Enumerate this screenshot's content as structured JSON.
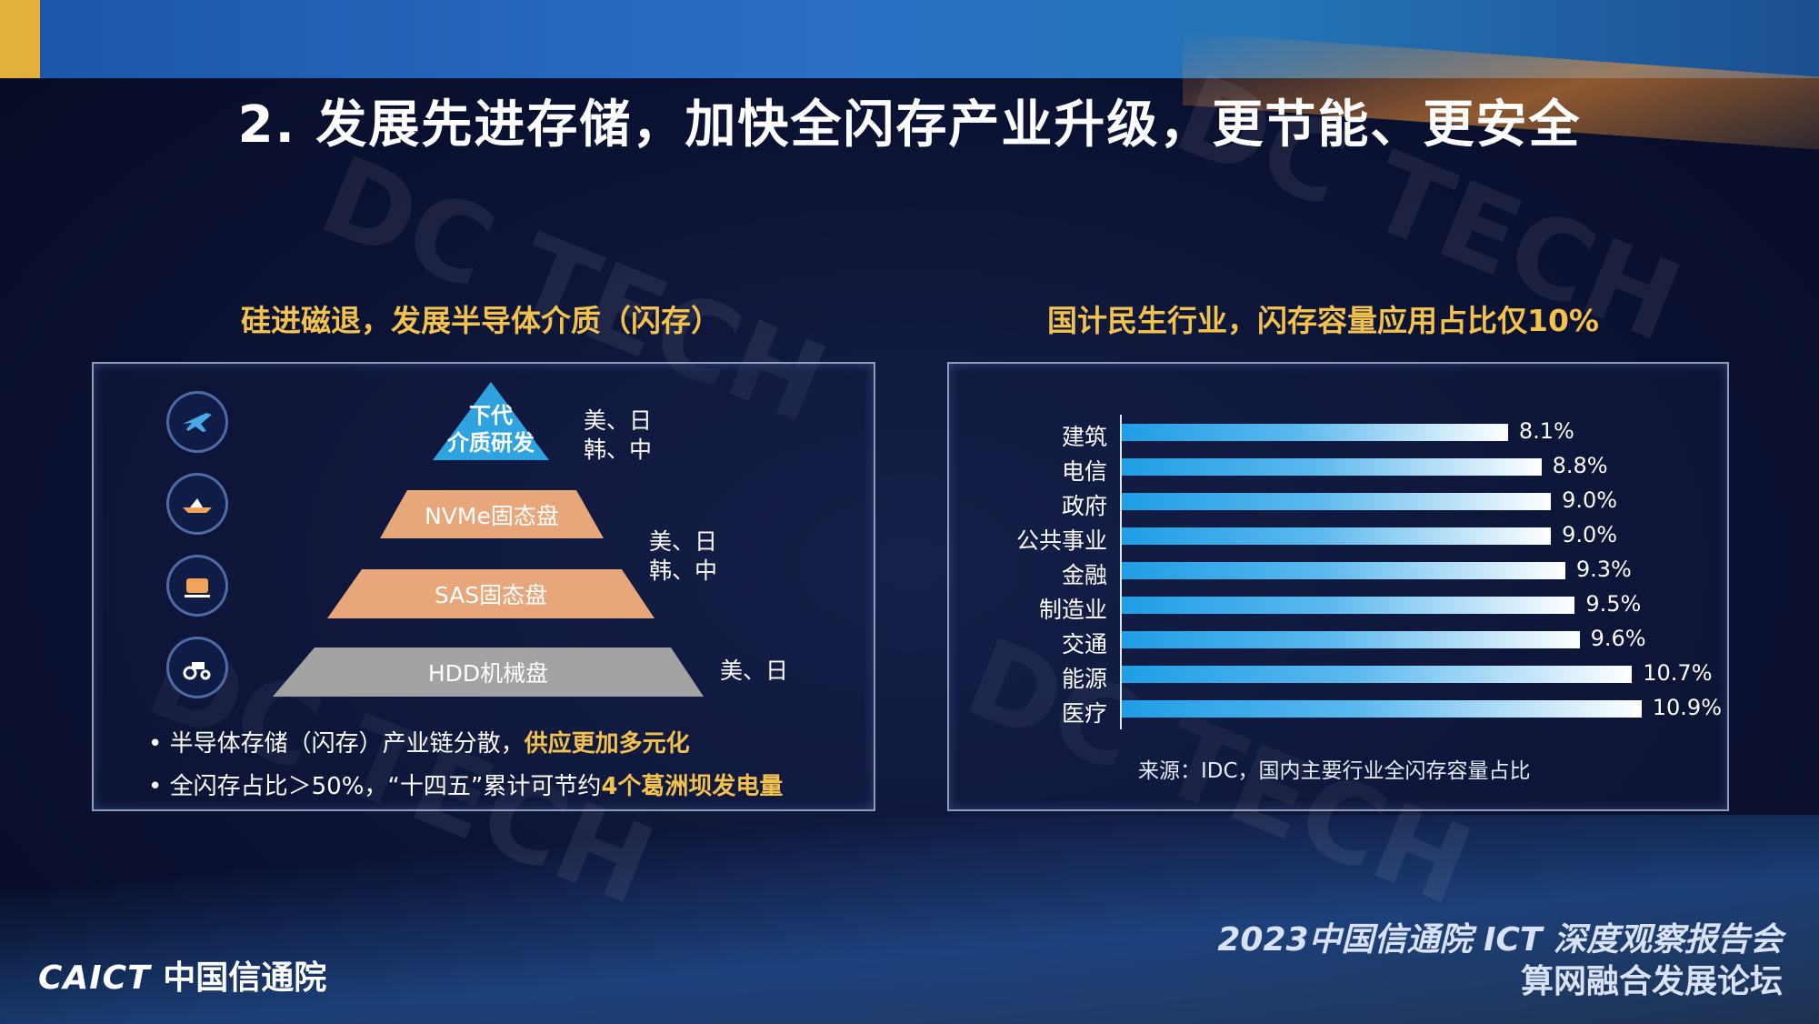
{
  "slide": {
    "title": "2. 发展先进存储，加快全闪存产业升级，更节能、更安全",
    "watermark": "DC TECH"
  },
  "left_panel": {
    "title": "硅进磁退，发展半导体介质（闪存）",
    "icons": [
      "jet-icon",
      "speedboat-icon",
      "train-icon",
      "tractor-icon"
    ],
    "tiers": [
      {
        "label_line1": "下代",
        "label_line2": "介质研发",
        "color": "#2ea3e0",
        "countries_line1": "美、日",
        "countries_line2": "韩、中"
      },
      {
        "label": "NVMe固态盘",
        "color": "#e8a77a"
      },
      {
        "label": "SAS固态盘",
        "color": "#e8a77a",
        "countries_line1": "美、日",
        "countries_line2": "韩、中"
      },
      {
        "label": "HDD机械盘",
        "color": "#a3a3a3",
        "countries": "美、日"
      }
    ],
    "bullets": [
      {
        "text": "半导体存储（闪存）产业链分散，",
        "highlight": "供应更加多元化",
        "suffix": ""
      },
      {
        "text": "全闪存占比＞50%，“十四五”累计可节约",
        "highlight": "4个葛洲坝发电量",
        "suffix": ""
      }
    ]
  },
  "right_panel": {
    "title": "国计民生行业，闪存容量应用占比仅10%",
    "source": "来源：IDC，国内主要行业全闪存容量占比"
  },
  "chart_data": {
    "type": "bar",
    "orientation": "horizontal",
    "categories": [
      "建筑",
      "电信",
      "政府",
      "公共事业",
      "金融",
      "制造业",
      "交通",
      "能源",
      "医疗"
    ],
    "values": [
      8.1,
      8.8,
      9.0,
      9.0,
      9.3,
      9.5,
      9.6,
      10.7,
      10.9
    ],
    "value_labels": [
      "8.1%",
      "8.8%",
      "9.0%",
      "9.0%",
      "9.3%",
      "9.5%",
      "9.6%",
      "10.7%",
      "10.9%"
    ],
    "xlim": [
      0,
      11
    ],
    "title": "",
    "xlabel": "",
    "ylabel": "",
    "grid": false,
    "bar_color_start": "#1f9ee6",
    "bar_color_end": "#ffffff"
  },
  "footer": {
    "event_line1": "2023中国信通院 ICT 深度观察报告会",
    "event_line2": "算网融合发展论坛",
    "logo_text": "CAICT",
    "logo_cn": "中国信通院"
  },
  "colors": {
    "accent_gold": "#f2c14e",
    "background": "#0b1233",
    "topbar": "#2a6fc4"
  }
}
